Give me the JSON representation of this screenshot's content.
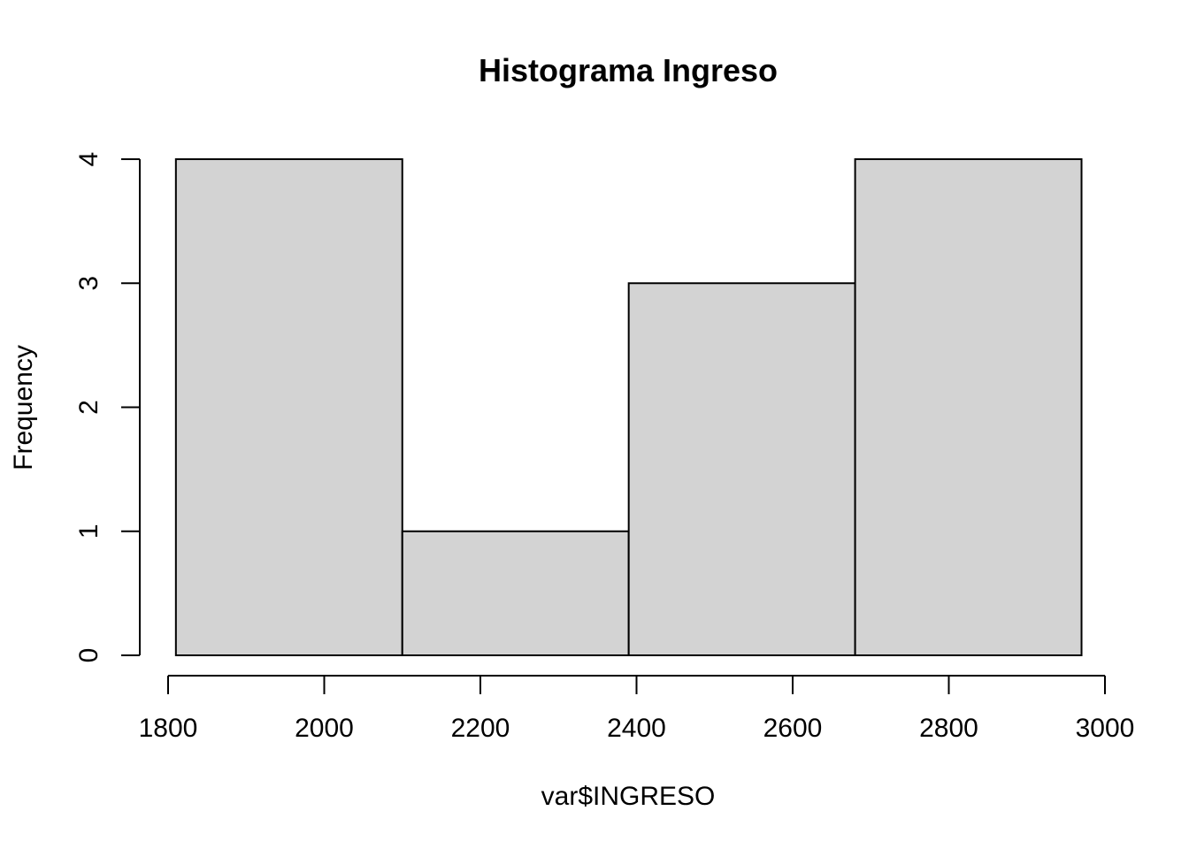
{
  "chart_data": {
    "type": "bar",
    "subtype": "histogram",
    "title": "Histograma Ingreso",
    "xlabel": "var$INGRESO",
    "ylabel": "Frequency",
    "bins": [
      {
        "start": 1810,
        "end": 2100,
        "count": 4
      },
      {
        "start": 2100,
        "end": 2390,
        "count": 1
      },
      {
        "start": 2390,
        "end": 2680,
        "count": 3
      },
      {
        "start": 2680,
        "end": 2970,
        "count": 4
      }
    ],
    "xlim": [
      1800,
      3000
    ],
    "ylim": [
      0,
      4
    ],
    "x_ticks": [
      "1800",
      "2000",
      "2200",
      "2400",
      "2600",
      "2800",
      "3000"
    ],
    "y_ticks": [
      "0",
      "1",
      "2",
      "3",
      "4"
    ],
    "grid": false,
    "legend": "none",
    "colors": {
      "bar_fill": "#d3d3d3",
      "bar_stroke": "#000000",
      "axis": "#000000",
      "background": "#ffffff"
    }
  }
}
